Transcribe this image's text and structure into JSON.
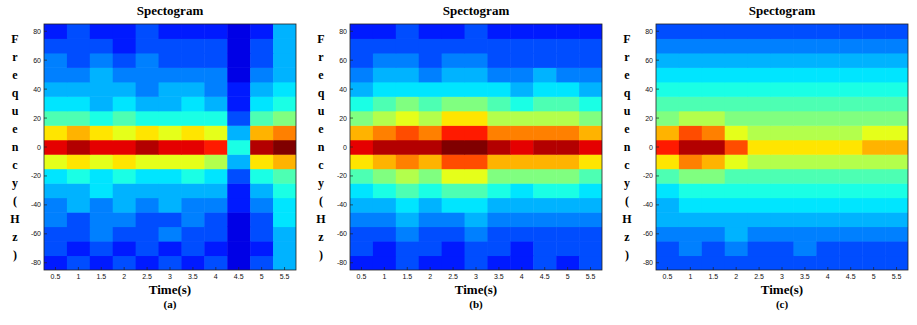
{
  "chart_data": [
    {
      "type": "heatmap",
      "title": "Spectogram",
      "x_label": "Time(s)",
      "y_label": "Frequency(Hz)",
      "panel_label": "(a)",
      "color": "jet",
      "xlim": [
        0.25,
        5.75
      ],
      "ylim": [
        -85,
        85
      ],
      "zlim": [
        0,
        1
      ],
      "xticks": [
        0.5,
        1,
        1.5,
        2,
        2.5,
        3,
        3.5,
        4,
        4.5,
        5,
        5.5
      ],
      "yticks": [
        -80,
        -60,
        -40,
        -20,
        0,
        20,
        40,
        60,
        80
      ],
      "x": [
        0.5,
        1,
        1.5,
        2,
        2.5,
        3,
        3.5,
        4,
        4.5,
        5,
        5.5
      ],
      "y": [
        -80,
        -70,
        -60,
        -50,
        -40,
        -30,
        -20,
        -10,
        0,
        10,
        20,
        30,
        40,
        50,
        60,
        70,
        80
      ],
      "z": [
        [
          0.15,
          0.2,
          0.15,
          0.2,
          0.15,
          0.2,
          0.15,
          0.2,
          0.1,
          0.2,
          0.3
        ],
        [
          0.2,
          0.15,
          0.2,
          0.15,
          0.2,
          0.15,
          0.2,
          0.15,
          0.1,
          0.15,
          0.3
        ],
        [
          0.2,
          0.2,
          0.25,
          0.2,
          0.2,
          0.25,
          0.2,
          0.2,
          0.1,
          0.2,
          0.3
        ],
        [
          0.25,
          0.2,
          0.25,
          0.25,
          0.2,
          0.2,
          0.25,
          0.2,
          0.1,
          0.2,
          0.35
        ],
        [
          0.25,
          0.3,
          0.25,
          0.3,
          0.25,
          0.3,
          0.25,
          0.25,
          0.15,
          0.25,
          0.35
        ],
        [
          0.3,
          0.3,
          0.35,
          0.3,
          0.3,
          0.3,
          0.3,
          0.3,
          0.15,
          0.3,
          0.4
        ],
        [
          0.35,
          0.4,
          0.35,
          0.4,
          0.35,
          0.35,
          0.4,
          0.35,
          0.2,
          0.4,
          0.45
        ],
        [
          0.6,
          0.65,
          0.6,
          0.65,
          0.6,
          0.6,
          0.6,
          0.55,
          0.3,
          0.65,
          0.7
        ],
        [
          0.9,
          0.95,
          0.9,
          0.9,
          0.95,
          0.9,
          0.9,
          0.85,
          0.4,
          0.95,
          1
        ],
        [
          0.65,
          0.7,
          0.65,
          0.6,
          0.65,
          0.6,
          0.65,
          0.6,
          0.3,
          0.7,
          0.75
        ],
        [
          0.45,
          0.45,
          0.4,
          0.45,
          0.4,
          0.4,
          0.4,
          0.4,
          0.2,
          0.45,
          0.5
        ],
        [
          0.35,
          0.35,
          0.3,
          0.35,
          0.3,
          0.3,
          0.35,
          0.3,
          0.15,
          0.35,
          0.4
        ],
        [
          0.3,
          0.3,
          0.3,
          0.3,
          0.25,
          0.3,
          0.3,
          0.25,
          0.15,
          0.3,
          0.35
        ],
        [
          0.25,
          0.25,
          0.3,
          0.25,
          0.25,
          0.25,
          0.25,
          0.25,
          0.1,
          0.25,
          0.3
        ],
        [
          0.25,
          0.2,
          0.25,
          0.2,
          0.25,
          0.2,
          0.2,
          0.2,
          0.1,
          0.2,
          0.3
        ],
        [
          0.2,
          0.2,
          0.2,
          0.15,
          0.2,
          0.2,
          0.2,
          0.2,
          0.1,
          0.2,
          0.3
        ],
        [
          0.15,
          0.2,
          0.15,
          0.15,
          0.2,
          0.15,
          0.15,
          0.15,
          0.1,
          0.15,
          0.3
        ]
      ]
    },
    {
      "type": "heatmap",
      "title": "Spectogram",
      "x_label": "Time(s)",
      "y_label": "Frequency(Hz)",
      "panel_label": "(b)",
      "color": "jet",
      "xlim": [
        0.25,
        5.75
      ],
      "ylim": [
        -85,
        85
      ],
      "zlim": [
        0,
        1
      ],
      "xticks": [
        0.5,
        1,
        1.5,
        2,
        2.5,
        3,
        3.5,
        4,
        4.5,
        5,
        5.5
      ],
      "yticks": [
        -80,
        -60,
        -40,
        -20,
        0,
        20,
        40,
        60,
        80
      ],
      "x": [
        0.5,
        1,
        1.5,
        2,
        2.5,
        3,
        3.5,
        4,
        4.5,
        5,
        5.5
      ],
      "y": [
        -80,
        -70,
        -60,
        -50,
        -40,
        -30,
        -20,
        -10,
        0,
        10,
        20,
        30,
        40,
        50,
        60,
        70,
        80
      ],
      "z": [
        [
          0.15,
          0.15,
          0.2,
          0.15,
          0.15,
          0.2,
          0.15,
          0.15,
          0.2,
          0.15,
          0.2
        ],
        [
          0.2,
          0.15,
          0.2,
          0.2,
          0.15,
          0.2,
          0.2,
          0.15,
          0.2,
          0.2,
          0.2
        ],
        [
          0.2,
          0.2,
          0.25,
          0.2,
          0.2,
          0.25,
          0.2,
          0.2,
          0.2,
          0.2,
          0.2
        ],
        [
          0.25,
          0.25,
          0.3,
          0.25,
          0.25,
          0.3,
          0.25,
          0.25,
          0.25,
          0.25,
          0.25
        ],
        [
          0.3,
          0.3,
          0.35,
          0.3,
          0.35,
          0.35,
          0.3,
          0.3,
          0.3,
          0.3,
          0.3
        ],
        [
          0.35,
          0.4,
          0.45,
          0.4,
          0.45,
          0.45,
          0.4,
          0.35,
          0.4,
          0.4,
          0.35
        ],
        [
          0.45,
          0.5,
          0.55,
          0.5,
          0.6,
          0.6,
          0.5,
          0.5,
          0.5,
          0.5,
          0.45
        ],
        [
          0.65,
          0.7,
          0.75,
          0.7,
          0.8,
          0.8,
          0.7,
          0.7,
          0.7,
          0.7,
          0.65
        ],
        [
          0.9,
          0.95,
          0.95,
          0.95,
          1,
          1,
          0.95,
          0.9,
          0.95,
          0.95,
          0.9
        ],
        [
          0.7,
          0.75,
          0.8,
          0.75,
          0.85,
          0.85,
          0.75,
          0.75,
          0.75,
          0.75,
          0.7
        ],
        [
          0.5,
          0.55,
          0.6,
          0.55,
          0.65,
          0.65,
          0.55,
          0.55,
          0.55,
          0.55,
          0.5
        ],
        [
          0.4,
          0.45,
          0.5,
          0.45,
          0.5,
          0.5,
          0.45,
          0.4,
          0.45,
          0.45,
          0.4
        ],
        [
          0.3,
          0.35,
          0.35,
          0.35,
          0.35,
          0.35,
          0.35,
          0.3,
          0.35,
          0.35,
          0.3
        ],
        [
          0.25,
          0.3,
          0.3,
          0.25,
          0.3,
          0.3,
          0.25,
          0.25,
          0.3,
          0.25,
          0.25
        ],
        [
          0.2,
          0.25,
          0.25,
          0.2,
          0.25,
          0.25,
          0.2,
          0.2,
          0.2,
          0.2,
          0.2
        ],
        [
          0.2,
          0.2,
          0.2,
          0.2,
          0.2,
          0.2,
          0.2,
          0.2,
          0.2,
          0.2,
          0.2
        ],
        [
          0.15,
          0.15,
          0.2,
          0.15,
          0.15,
          0.2,
          0.15,
          0.15,
          0.15,
          0.15,
          0.15
        ]
      ]
    },
    {
      "type": "heatmap",
      "title": "Spectogram",
      "x_label": "Time(s)",
      "y_label": "Frequency(Hz)",
      "panel_label": "(c)",
      "color": "jet",
      "xlim": [
        0.25,
        5.75
      ],
      "ylim": [
        -85,
        85
      ],
      "zlim": [
        0,
        1
      ],
      "xticks": [
        0.5,
        1,
        1.5,
        2,
        2.5,
        3,
        3.5,
        4,
        4.5,
        5,
        5.5
      ],
      "yticks": [
        -80,
        -60,
        -40,
        -20,
        0,
        20,
        40,
        60,
        80
      ],
      "x": [
        0.5,
        1,
        1.5,
        2,
        2.5,
        3,
        3.5,
        4,
        4.5,
        5,
        5.5
      ],
      "y": [
        -80,
        -70,
        -60,
        -50,
        -40,
        -30,
        -20,
        -10,
        0,
        10,
        20,
        30,
        40,
        50,
        60,
        70,
        80
      ],
      "z": [
        [
          0.2,
          0.2,
          0.2,
          0.2,
          0.2,
          0.2,
          0.2,
          0.2,
          0.2,
          0.2,
          0.2
        ],
        [
          0.2,
          0.25,
          0.2,
          0.25,
          0.2,
          0.2,
          0.25,
          0.2,
          0.2,
          0.2,
          0.2
        ],
        [
          0.25,
          0.25,
          0.25,
          0.3,
          0.25,
          0.25,
          0.25,
          0.25,
          0.25,
          0.25,
          0.25
        ],
        [
          0.3,
          0.3,
          0.3,
          0.3,
          0.3,
          0.3,
          0.3,
          0.3,
          0.3,
          0.3,
          0.3
        ],
        [
          0.3,
          0.35,
          0.35,
          0.35,
          0.35,
          0.35,
          0.35,
          0.35,
          0.35,
          0.35,
          0.35
        ],
        [
          0.35,
          0.4,
          0.4,
          0.4,
          0.4,
          0.4,
          0.4,
          0.4,
          0.4,
          0.4,
          0.4
        ],
        [
          0.45,
          0.5,
          0.5,
          0.45,
          0.45,
          0.45,
          0.45,
          0.45,
          0.45,
          0.45,
          0.45
        ],
        [
          0.65,
          0.75,
          0.7,
          0.6,
          0.55,
          0.55,
          0.55,
          0.55,
          0.55,
          0.55,
          0.55
        ],
        [
          0.85,
          0.95,
          0.95,
          0.8,
          0.65,
          0.65,
          0.65,
          0.65,
          0.65,
          0.7,
          0.7
        ],
        [
          0.7,
          0.8,
          0.75,
          0.6,
          0.55,
          0.55,
          0.55,
          0.55,
          0.55,
          0.6,
          0.6
        ],
        [
          0.5,
          0.55,
          0.55,
          0.5,
          0.5,
          0.5,
          0.5,
          0.5,
          0.5,
          0.5,
          0.5
        ],
        [
          0.45,
          0.45,
          0.45,
          0.45,
          0.45,
          0.45,
          0.45,
          0.45,
          0.45,
          0.45,
          0.45
        ],
        [
          0.4,
          0.4,
          0.4,
          0.4,
          0.4,
          0.4,
          0.4,
          0.4,
          0.4,
          0.4,
          0.4
        ],
        [
          0.35,
          0.35,
          0.35,
          0.35,
          0.35,
          0.35,
          0.35,
          0.35,
          0.35,
          0.35,
          0.35
        ],
        [
          0.3,
          0.3,
          0.3,
          0.3,
          0.3,
          0.3,
          0.3,
          0.3,
          0.3,
          0.3,
          0.3
        ],
        [
          0.25,
          0.25,
          0.25,
          0.25,
          0.25,
          0.25,
          0.25,
          0.25,
          0.25,
          0.25,
          0.25
        ],
        [
          0.2,
          0.2,
          0.2,
          0.2,
          0.2,
          0.2,
          0.2,
          0.2,
          0.2,
          0.2,
          0.2
        ]
      ]
    }
  ]
}
